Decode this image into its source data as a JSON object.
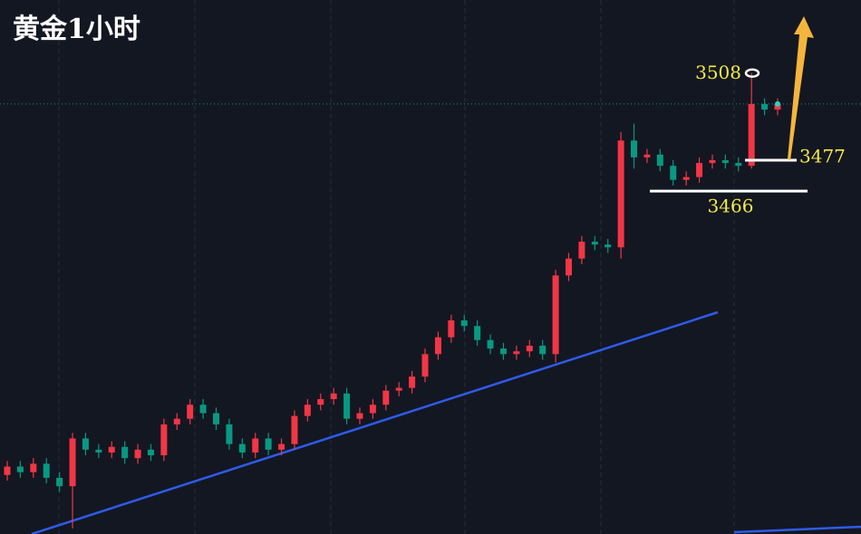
{
  "chart_data": {
    "type": "candlestick",
    "title": "黄金1小时",
    "open": [
      3365,
      3368,
      3366,
      3369,
      3364,
      3361,
      3378,
      3374,
      3373,
      3375,
      3371,
      3374,
      3372,
      3383,
      3385,
      3390,
      3387,
      3383,
      3376,
      3373,
      3378,
      3374,
      3376,
      3386,
      3390,
      3392,
      3394,
      3385,
      3387,
      3390,
      3395,
      3396,
      3400,
      3408,
      3414,
      3420,
      3418,
      3413,
      3410,
      3408,
      3409,
      3411,
      3408,
      3436,
      3442,
      3448,
      3447,
      3446,
      3484,
      3478,
      3479,
      3475,
      3470,
      3471,
      3476,
      3477,
      3476,
      3475,
      3497,
      3495
    ],
    "high": [
      3370,
      3370,
      3371,
      3371,
      3366,
      3380,
      3380,
      3376,
      3377,
      3377,
      3376,
      3376,
      3385,
      3387,
      3392,
      3392,
      3389,
      3385,
      3378,
      3380,
      3380,
      3378,
      3388,
      3392,
      3394,
      3396,
      3396,
      3389,
      3392,
      3397,
      3398,
      3402,
      3410,
      3416,
      3422,
      3422,
      3420,
      3415,
      3412,
      3411,
      3413,
      3413,
      3438,
      3444,
      3450,
      3450,
      3449,
      3487,
      3490,
      3481,
      3481,
      3477,
      3473,
      3478,
      3479,
      3479,
      3478,
      3508,
      3499,
      3499
    ],
    "low": [
      3363,
      3364,
      3364,
      3362,
      3359,
      3346,
      3372,
      3371,
      3371,
      3369,
      3369,
      3370,
      3370,
      3381,
      3383,
      3385,
      3381,
      3374,
      3371,
      3371,
      3372,
      3372,
      3374,
      3384,
      3388,
      3390,
      3383,
      3383,
      3385,
      3388,
      3393,
      3394,
      3398,
      3406,
      3412,
      3416,
      3411,
      3408,
      3406,
      3406,
      3407,
      3406,
      3405,
      3434,
      3440,
      3445,
      3444,
      3442,
      3474,
      3476,
      3473,
      3468,
      3468,
      3469,
      3474,
      3474,
      3473,
      3474,
      3493,
      3493
    ],
    "close": [
      3368,
      3366,
      3369,
      3364,
      3361,
      3378,
      3374,
      3373,
      3375,
      3371,
      3374,
      3372,
      3383,
      3385,
      3390,
      3387,
      3383,
      3376,
      3373,
      3378,
      3374,
      3376,
      3386,
      3390,
      3392,
      3394,
      3385,
      3387,
      3390,
      3395,
      3396,
      3400,
      3408,
      3414,
      3420,
      3418,
      3413,
      3410,
      3408,
      3409,
      3411,
      3408,
      3436,
      3442,
      3448,
      3447,
      3446,
      3484,
      3478,
      3479,
      3475,
      3470,
      3471,
      3476,
      3477,
      3476,
      3475,
      3497,
      3495,
      3497
    ],
    "up_color": "#f23645",
    "down_color": "#089981",
    "ylim": [
      3344,
      3534
    ],
    "last": 3497,
    "levels": [
      3508,
      3477,
      3466
    ]
  }
}
